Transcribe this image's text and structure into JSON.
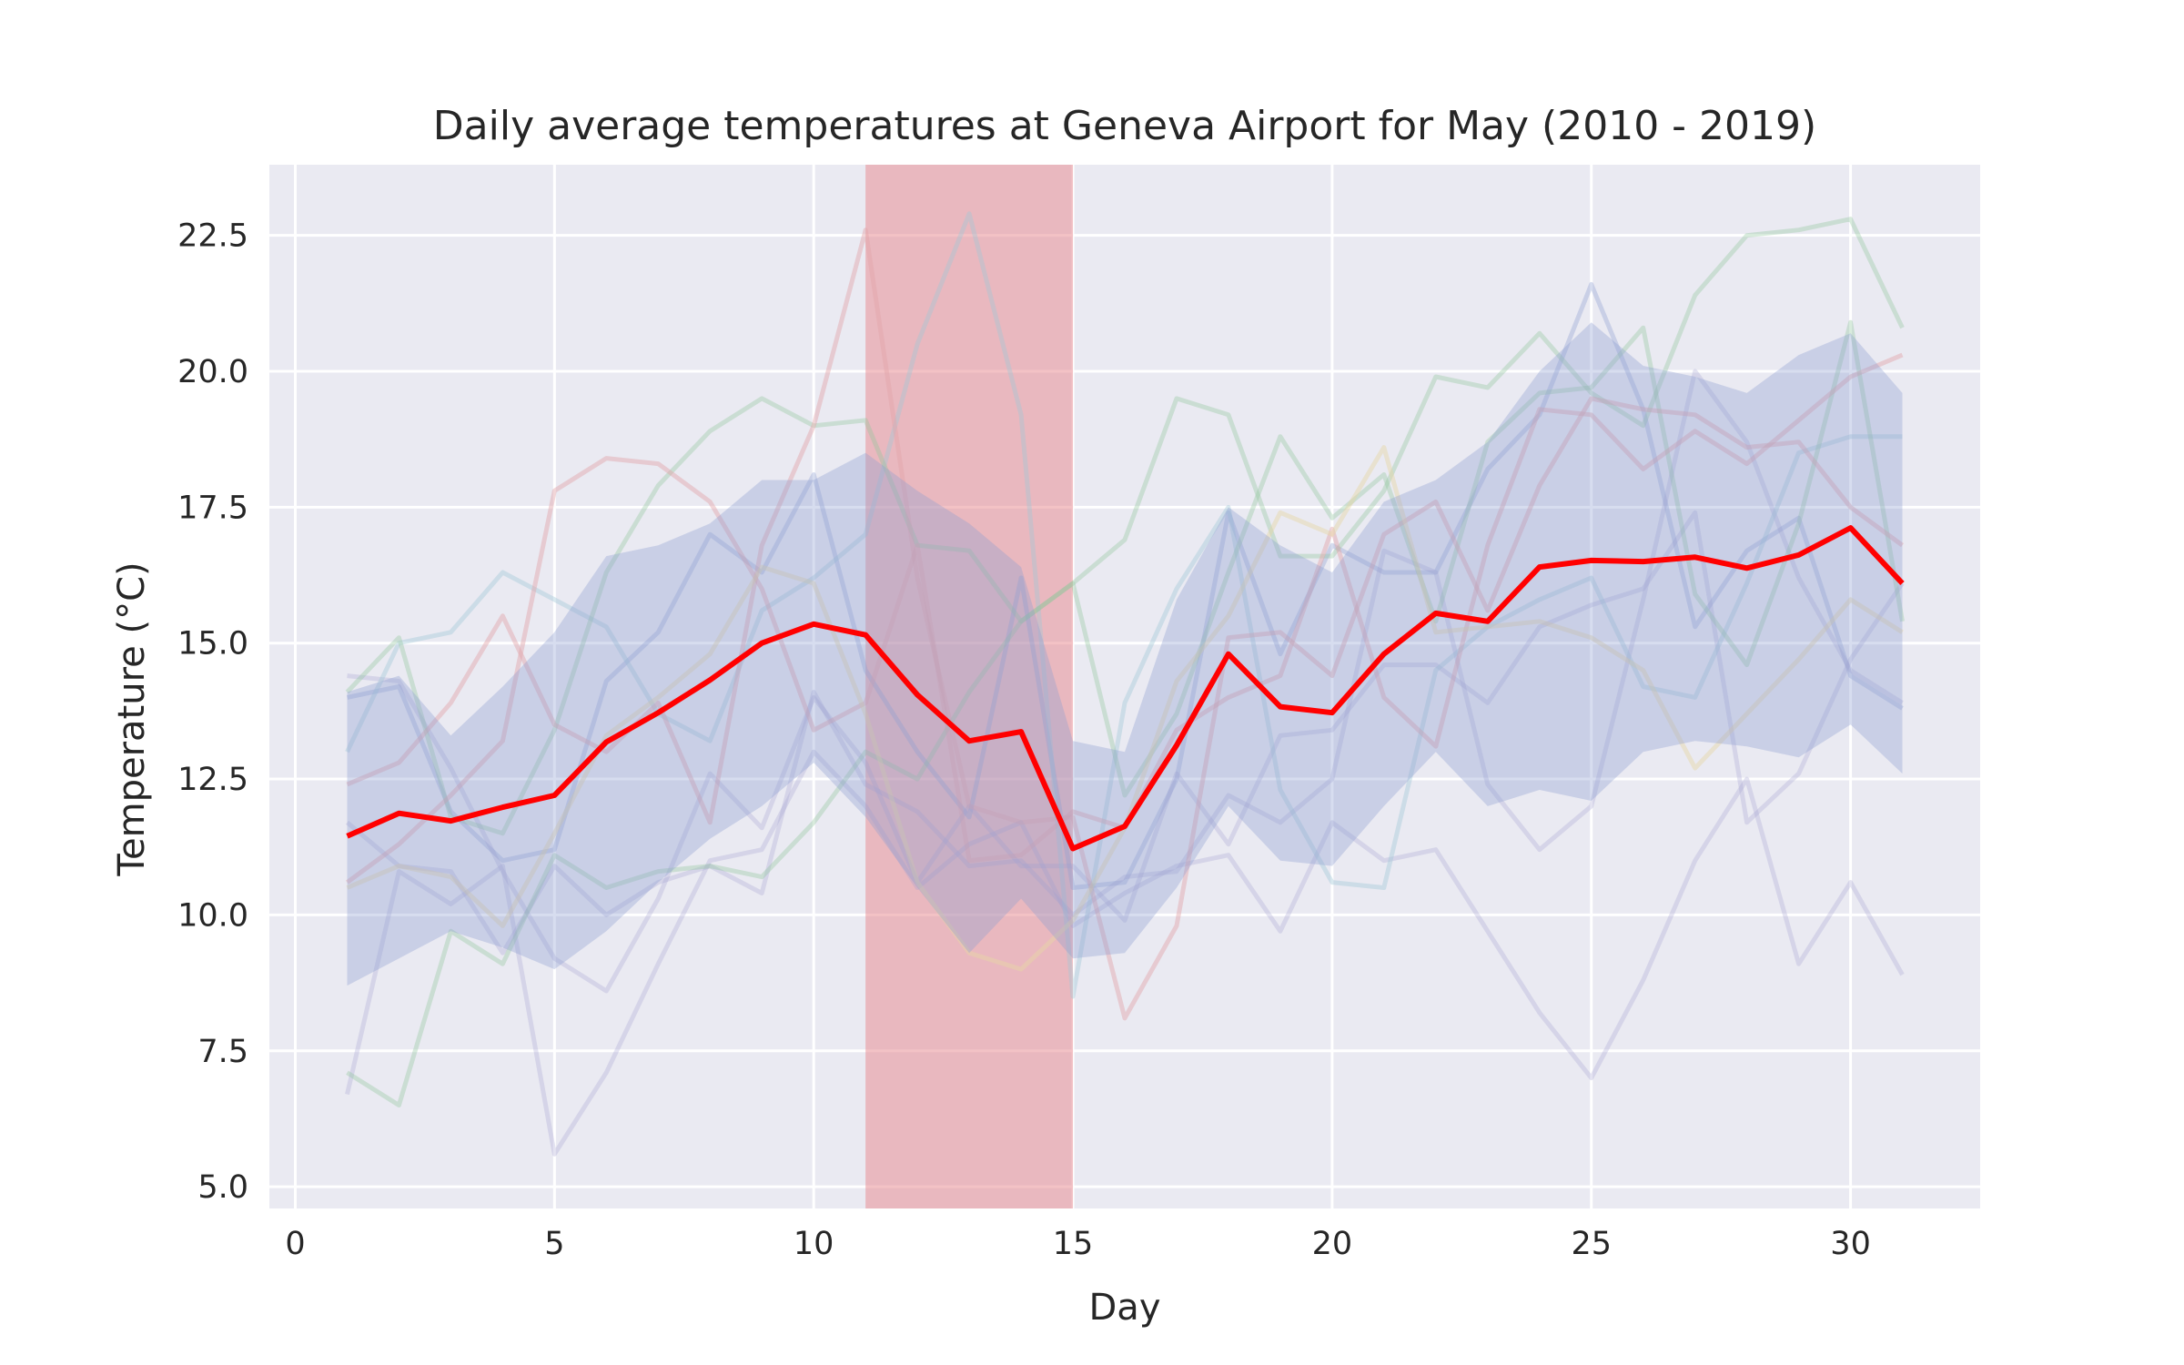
{
  "chart_data": {
    "type": "line",
    "title": "Daily average temperatures at Geneva Airport for May (2010 - 2019)",
    "xlabel": "Day",
    "ylabel": "Temperature ($^\\circ$C)",
    "ylabel_display": "Temperature (°C)",
    "xlim": [
      -0.5,
      32.5
    ],
    "ylim": [
      4.6,
      23.8
    ],
    "xticks": [
      0,
      5,
      10,
      15,
      20,
      25,
      30
    ],
    "yticks": [
      5.0,
      7.5,
      10.0,
      12.5,
      15.0,
      17.5,
      20.0,
      22.5
    ],
    "ytick_labels": [
      "5.0",
      "7.5",
      "10.0",
      "12.5",
      "15.0",
      "17.5",
      "20.0",
      "22.5"
    ],
    "grid": true,
    "background": "#eaeaf2",
    "highlight_span": {
      "x0": 11,
      "x1": 15,
      "color": "#e8868b",
      "opacity": 0.5
    },
    "x": [
      1,
      2,
      3,
      4,
      5,
      6,
      7,
      8,
      9,
      10,
      11,
      12,
      13,
      14,
      15,
      16,
      17,
      18,
      19,
      20,
      21,
      22,
      23,
      24,
      25,
      26,
      27,
      28,
      29,
      30,
      31
    ],
    "mean": {
      "name": "mean",
      "color": "#ff0000",
      "values": [
        11.45,
        11.87,
        11.73,
        11.98,
        12.2,
        13.18,
        13.72,
        14.32,
        15.0,
        15.35,
        15.15,
        14.05,
        13.2,
        13.37,
        11.22,
        11.63,
        13.12,
        14.8,
        13.83,
        13.72,
        14.8,
        15.55,
        15.4,
        16.4,
        16.52,
        16.5,
        16.58,
        16.38,
        16.62,
        17.12,
        16.1
      ]
    },
    "band": {
      "color": "#8c9ed0",
      "opacity": 0.35,
      "upper": [
        14.1,
        14.4,
        13.3,
        14.2,
        15.2,
        16.6,
        16.8,
        17.2,
        18.0,
        18.0,
        18.5,
        17.8,
        17.2,
        16.4,
        13.2,
        13.0,
        15.8,
        17.5,
        16.8,
        16.3,
        17.6,
        18.0,
        18.7,
        20.0,
        20.9,
        20.1,
        19.9,
        19.6,
        20.3,
        20.7,
        19.6
      ],
      "lower": [
        8.7,
        9.2,
        9.7,
        9.4,
        9.0,
        9.7,
        10.6,
        11.4,
        12.0,
        12.8,
        11.8,
        10.5,
        9.3,
        10.3,
        9.2,
        9.3,
        10.5,
        12.0,
        11.0,
        10.9,
        12.0,
        13.0,
        12.0,
        12.3,
        12.1,
        13.0,
        13.2,
        13.1,
        12.9,
        13.5,
        12.6
      ]
    },
    "series": [
      {
        "color": "#8c9ed0",
        "opacity": 0.35,
        "values": [
          14.0,
          14.2,
          11.9,
          11.0,
          11.2,
          14.3,
          15.2,
          17.0,
          16.3,
          18.1,
          14.5,
          13.0,
          11.8,
          16.2,
          10.5,
          10.6,
          12.5,
          17.4,
          14.8,
          16.8,
          16.3,
          16.3,
          18.2,
          19.2,
          21.6,
          19.3,
          15.3,
          16.7,
          17.3,
          14.4,
          13.8
        ]
      },
      {
        "color": "#a7a3d0",
        "opacity": 0.3,
        "values": [
          11.7,
          10.9,
          10.8,
          9.3,
          10.9,
          10.0,
          10.6,
          10.9,
          10.4,
          14.1,
          12.4,
          11.9,
          10.9,
          11.0,
          10.0,
          10.7,
          10.8,
          12.2,
          11.7,
          12.5,
          16.7,
          16.3,
          12.4,
          11.2,
          12.0,
          15.8,
          20.0,
          18.7,
          16.2,
          14.5,
          13.9
        ]
      },
      {
        "color": "#a7a3d0",
        "opacity": 0.3,
        "values": [
          6.7,
          10.8,
          10.2,
          10.9,
          5.6,
          7.1,
          9.1,
          11.0,
          11.2,
          13.0,
          12.0,
          10.5,
          11.3,
          11.7,
          9.8,
          10.4,
          10.9,
          11.1,
          9.7,
          11.7,
          11.0,
          11.2,
          9.7,
          8.2,
          7.0,
          8.8,
          11.0,
          12.5,
          9.1,
          10.6,
          8.9
        ]
      },
      {
        "color": "#a7a3d0",
        "opacity": 0.3,
        "values": [
          14.4,
          14.3,
          12.7,
          10.8,
          9.2,
          8.6,
          10.3,
          12.6,
          11.6,
          14.0,
          12.8,
          10.6,
          12.0,
          10.9,
          10.9,
          9.9,
          12.6,
          11.3,
          13.3,
          13.4,
          14.6,
          14.6,
          13.9,
          15.3,
          15.7,
          16.0,
          17.4,
          11.7,
          12.6,
          14.7,
          16.1
        ]
      },
      {
        "color": "#9fc8d8",
        "opacity": 0.4,
        "values": [
          13.0,
          15.0,
          15.2,
          16.3,
          15.8,
          15.3,
          13.7,
          13.2,
          15.6,
          16.2,
          17.0,
          20.5,
          22.9,
          19.2,
          8.5,
          13.9,
          16.0,
          17.5,
          12.3,
          10.6,
          10.5,
          14.5,
          15.3,
          15.8,
          16.2,
          14.2,
          14.0,
          16.1,
          18.5,
          18.8,
          18.8
        ]
      },
      {
        "color": "#8fc59a",
        "opacity": 0.35,
        "values": [
          14.1,
          15.1,
          11.8,
          11.5,
          13.4,
          16.3,
          17.9,
          18.9,
          19.5,
          19.0,
          19.1,
          16.8,
          16.7,
          15.4,
          16.1,
          16.9,
          19.5,
          19.2,
          16.6,
          16.6,
          17.8,
          19.9,
          19.7,
          20.7,
          19.6,
          19.0,
          21.4,
          22.5,
          22.6,
          22.8,
          20.8
        ]
      },
      {
        "color": "#8fc59a",
        "opacity": 0.35,
        "values": [
          7.1,
          6.5,
          9.7,
          9.1,
          11.1,
          10.5,
          10.8,
          10.9,
          10.7,
          11.7,
          13.0,
          12.5,
          14.1,
          15.4,
          16.1,
          12.2,
          13.7,
          16.3,
          18.8,
          17.3,
          18.1,
          15.4,
          18.7,
          19.6,
          19.7,
          20.8,
          15.9,
          14.6,
          17.2,
          20.9,
          15.4
        ]
      },
      {
        "color": "#e3a3a8",
        "opacity": 0.45,
        "values": [
          12.4,
          12.8,
          13.9,
          15.5,
          13.5,
          13.0,
          13.9,
          11.7,
          16.8,
          19.0,
          22.6,
          16.2,
          12.0,
          11.7,
          11.8,
          8.1,
          9.8,
          15.1,
          15.2,
          14.4,
          17.0,
          17.6,
          15.6,
          17.9,
          19.5,
          19.3,
          19.2,
          18.6,
          18.7,
          17.5,
          16.8
        ]
      },
      {
        "color": "#e3a3a8",
        "opacity": 0.45,
        "values": [
          10.6,
          11.3,
          12.2,
          13.2,
          17.8,
          18.4,
          18.3,
          17.6,
          16.0,
          13.4,
          13.9,
          16.8,
          11.0,
          11.1,
          11.9,
          11.6,
          13.4,
          14.0,
          14.4,
          17.1,
          14.0,
          13.1,
          16.8,
          19.3,
          19.2,
          18.2,
          18.9,
          18.3,
          19.1,
          19.9,
          20.3
        ]
      },
      {
        "color": "#e6d6a4",
        "opacity": 0.45,
        "values": [
          10.5,
          10.9,
          10.7,
          9.8,
          11.5,
          13.3,
          14.0,
          14.8,
          16.4,
          16.1,
          13.7,
          10.6,
          9.3,
          9.0,
          9.9,
          11.6,
          14.3,
          15.5,
          17.4,
          17.0,
          18.6,
          15.2,
          15.3,
          15.4,
          15.1,
          14.5,
          12.7,
          13.7,
          14.7,
          15.8,
          15.2
        ]
      }
    ]
  }
}
